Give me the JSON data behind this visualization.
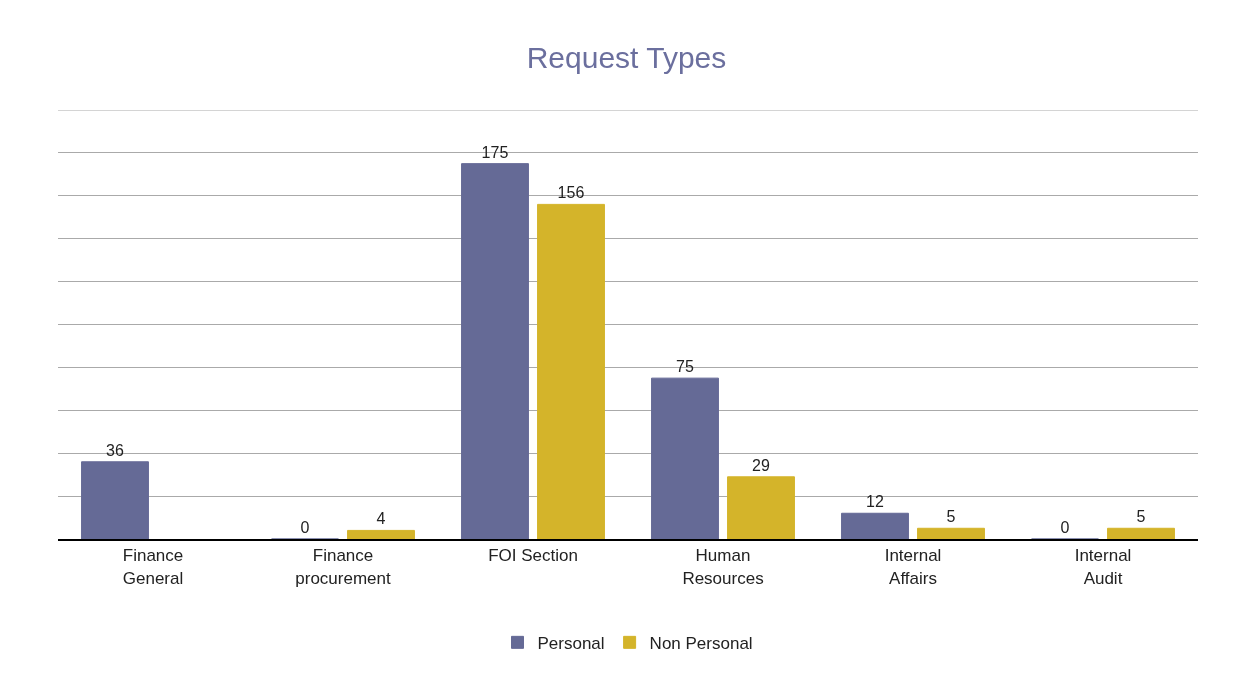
{
  "chart_data": {
    "type": "bar",
    "title": "Request Types",
    "categories": [
      "Finance\nGeneral",
      "Finance\nprocurement",
      "FOI Section",
      "Human\nResources",
      "Internal\nAffairs",
      "Internal\nAudit"
    ],
    "series": [
      {
        "name": "Personal",
        "color": "#656a96",
        "values": [
          36,
          0,
          175,
          75,
          12,
          0
        ]
      },
      {
        "name": "Non Personal",
        "color": "#d4b42a",
        "values": [
          null,
          4,
          156,
          29,
          5,
          5
        ]
      }
    ],
    "ylim": [
      0,
      200
    ],
    "yticks": [
      {
        "value": 0,
        "label": null
      },
      {
        "value": 20,
        "label": null
      },
      {
        "value": 40,
        "label": null
      },
      {
        "value": 60,
        "label": null
      },
      {
        "value": 80,
        "label": null
      },
      {
        "value": 100,
        "label": null
      },
      {
        "value": 120,
        "label": null
      },
      {
        "value": 140,
        "label": null
      },
      {
        "value": 160,
        "label": null
      },
      {
        "value": 180,
        "label": null
      },
      {
        "value": 200,
        "label": null
      }
    ],
    "tick_labels": "x",
    "grid": "y",
    "legend": "bottom",
    "data_labels": true
  }
}
